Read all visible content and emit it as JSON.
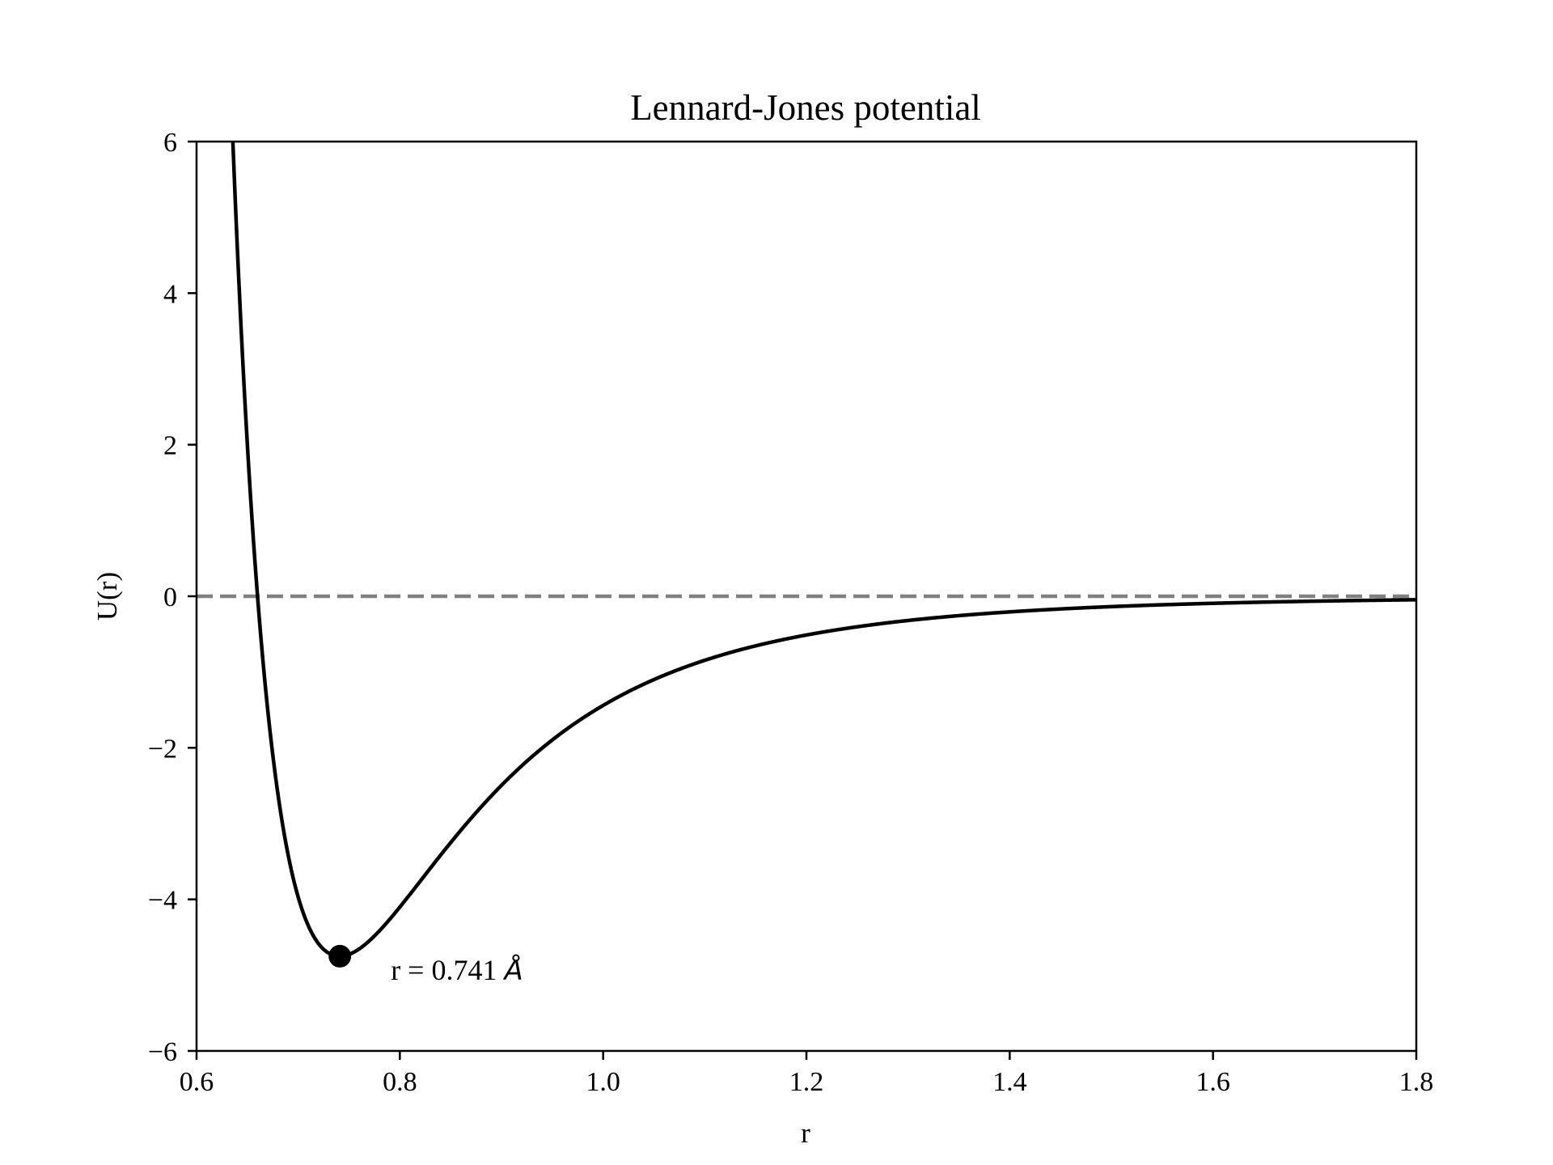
{
  "chart_data": {
    "type": "line",
    "title": "Lennard-Jones potential",
    "xlabel": "r",
    "ylabel": "U(r)",
    "xlim": [
      0.6,
      1.8
    ],
    "ylim": [
      -6,
      6
    ],
    "grid": false,
    "x_ticks": [
      0.6,
      0.8,
      1.0,
      1.2,
      1.4,
      1.6,
      1.8
    ],
    "x_tick_labels": [
      "0.6",
      "0.8",
      "1.0",
      "1.2",
      "1.4",
      "1.6",
      "1.8"
    ],
    "y_ticks": [
      -6,
      -4,
      -2,
      0,
      2,
      4,
      6
    ],
    "y_tick_labels": [
      "−6",
      "−4",
      "−2",
      "0",
      "2",
      "4",
      "6"
    ],
    "series": [
      {
        "color": "#000000",
        "style": "solid",
        "function": "lennard-jones",
        "epsilon": 4.75,
        "sigma": 0.66,
        "x_range": [
          0.6,
          1.8
        ]
      }
    ],
    "reference_line": {
      "y": 0,
      "color": "#808080",
      "style": "dashed"
    },
    "marker": {
      "x": 0.741,
      "y": -4.75,
      "color": "#000000"
    },
    "annotation": {
      "text": "r = 0.741 ",
      "unit": "Å",
      "x": 0.741,
      "y": -4.75
    }
  }
}
